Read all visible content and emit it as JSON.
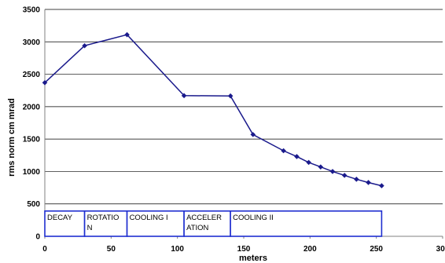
{
  "chart_data": {
    "type": "line",
    "title": "",
    "xlabel": "meters",
    "ylabel": "rms norm cm mrad",
    "xlim": [
      0,
      300
    ],
    "ylim": [
      0,
      3500
    ],
    "x_ticks": [
      "0",
      "50",
      "100",
      "150",
      "200",
      "250",
      "300"
    ],
    "y_ticks": [
      "0",
      "500",
      "1000",
      "1500",
      "2000",
      "2500",
      "3000",
      "3500"
    ],
    "grid": "horizontal",
    "series_color": "#1a1a8c",
    "marker": "diamond",
    "series": [
      {
        "x": [
          0,
          30,
          62,
          105,
          140,
          157,
          180,
          190,
          199,
          208,
          217,
          226,
          235,
          244,
          254
        ],
        "y": [
          2370,
          2940,
          3110,
          2170,
          2165,
          1570,
          1320,
          1230,
          1140,
          1070,
          1000,
          940,
          880,
          830,
          780
        ]
      }
    ],
    "annotations": {
      "box_color": "#1f2fd0",
      "y_range": [
        0,
        390
      ],
      "stages": [
        {
          "label_lines": [
            "DECAY"
          ],
          "x_range": [
            0,
            30
          ]
        },
        {
          "label_lines": [
            "ROTATIO",
            "N"
          ],
          "x_range": [
            30,
            62
          ]
        },
        {
          "label_lines": [
            "COOLING I"
          ],
          "x_range": [
            62,
            105
          ]
        },
        {
          "label_lines": [
            "ACCELER",
            "ATION"
          ],
          "x_range": [
            105,
            140
          ]
        },
        {
          "label_lines": [
            "COOLING  II"
          ],
          "x_range": [
            140,
            254
          ]
        }
      ]
    }
  }
}
